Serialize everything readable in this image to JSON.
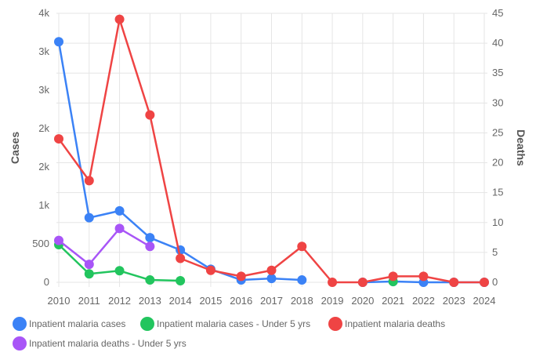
{
  "chart_data": {
    "type": "line",
    "x": [
      "2010",
      "2011",
      "2012",
      "2013",
      "2014",
      "2015",
      "2016",
      "2017",
      "2018",
      "2019",
      "2020",
      "2021",
      "2022",
      "2023",
      "2024"
    ],
    "y_left": {
      "label": "Cases",
      "range": [
        0,
        3500
      ],
      "ticks": [
        0,
        500,
        1000,
        1500,
        2000,
        2500,
        3000,
        3500
      ],
      "tick_labels": [
        "0",
        "500",
        "1k",
        "2k",
        "2k",
        "3k",
        "3k",
        "4k"
      ]
    },
    "y_right": {
      "label": "Deaths",
      "range": [
        0,
        45
      ],
      "ticks": [
        0,
        5,
        10,
        15,
        20,
        25,
        30,
        35,
        40,
        45
      ],
      "tick_labels": [
        "0",
        "5",
        "10",
        "15",
        "20",
        "25",
        "30",
        "35",
        "40",
        "45"
      ]
    },
    "grid": true,
    "legend_position": "bottom-left",
    "series": [
      {
        "name": "Inpatient malaria cases",
        "axis": "left",
        "color": "#3b82f6",
        "values": [
          3130,
          840,
          930,
          580,
          420,
          170,
          30,
          50,
          30,
          null,
          0,
          10,
          0,
          0,
          0
        ]
      },
      {
        "name": "Inpatient malaria cases - Under 5 yrs",
        "axis": "left",
        "color": "#22c55e",
        "values": [
          490,
          110,
          150,
          30,
          20,
          null,
          null,
          null,
          null,
          null,
          null,
          10,
          null,
          null,
          null
        ]
      },
      {
        "name": "Inpatient malaria deaths",
        "axis": "right",
        "color": "#ef4444",
        "values": [
          24,
          17,
          44,
          28,
          4,
          2,
          1,
          2,
          6,
          0,
          0,
          1,
          1,
          0,
          0
        ]
      },
      {
        "name": "Inpatient malaria deaths - Under 5 yrs",
        "axis": "right",
        "color": "#a855f7",
        "values": [
          7,
          3,
          9,
          6,
          null,
          null,
          null,
          null,
          null,
          null,
          null,
          null,
          null,
          null,
          null
        ]
      }
    ]
  }
}
